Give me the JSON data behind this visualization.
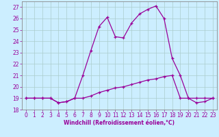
{
  "xlabel": "Windchill (Refroidissement éolien,°C)",
  "bg_color": "#cceeff",
  "grid_color": "#aacccc",
  "line_color": "#990099",
  "x_hours": [
    0,
    1,
    2,
    3,
    4,
    5,
    6,
    7,
    8,
    9,
    10,
    11,
    12,
    13,
    14,
    15,
    16,
    17,
    18,
    19,
    20,
    21,
    22,
    23
  ],
  "temp_line": [
    19.0,
    19.0,
    19.0,
    19.0,
    18.6,
    18.7,
    19.0,
    19.0,
    19.2,
    19.5,
    19.7,
    19.9,
    20.0,
    20.2,
    20.4,
    20.6,
    20.7,
    20.9,
    21.0,
    19.0,
    19.0,
    18.6,
    18.7,
    19.0
  ],
  "windchill_line": [
    19.0,
    19.0,
    19.0,
    19.0,
    18.6,
    18.7,
    19.0,
    21.0,
    23.2,
    25.3,
    26.1,
    24.4,
    24.3,
    25.6,
    26.4,
    26.8,
    27.1,
    26.0,
    22.5,
    21.0,
    19.0,
    19.0,
    19.0,
    19.0
  ],
  "ylim": [
    18.0,
    27.5
  ],
  "xlim": [
    -0.5,
    23.5
  ],
  "yticks": [
    18,
    19,
    20,
    21,
    22,
    23,
    24,
    25,
    26,
    27
  ],
  "xticks": [
    0,
    1,
    2,
    3,
    4,
    5,
    6,
    7,
    8,
    9,
    10,
    11,
    12,
    13,
    14,
    15,
    16,
    17,
    18,
    19,
    20,
    21,
    22,
    23
  ],
  "spine_color": "#888888",
  "tick_fontsize": 5.5,
  "xlabel_fontsize": 5.5
}
